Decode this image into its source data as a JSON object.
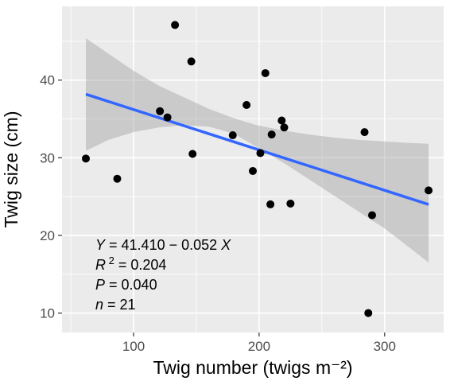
{
  "chart_data": {
    "type": "scatter",
    "xlabel": "Twig number (twigs m⁻²)",
    "ylabel": "Twig size (cm)",
    "xlim": [
      43,
      347
    ],
    "ylim": [
      7.5,
      49.5
    ],
    "x_ticks": [
      100,
      200,
      300
    ],
    "y_ticks": [
      10,
      20,
      30,
      40
    ],
    "grid": true,
    "points": [
      {
        "x": 62,
        "y": 29.9
      },
      {
        "x": 87,
        "y": 27.3
      },
      {
        "x": 121,
        "y": 36.0
      },
      {
        "x": 127,
        "y": 35.2
      },
      {
        "x": 133,
        "y": 47.1
      },
      {
        "x": 146,
        "y": 42.4
      },
      {
        "x": 147,
        "y": 30.5
      },
      {
        "x": 179,
        "y": 32.9
      },
      {
        "x": 190,
        "y": 36.8
      },
      {
        "x": 195,
        "y": 28.3
      },
      {
        "x": 201,
        "y": 30.6
      },
      {
        "x": 205,
        "y": 40.9
      },
      {
        "x": 209,
        "y": 24.0
      },
      {
        "x": 210,
        "y": 33.0
      },
      {
        "x": 218,
        "y": 34.8
      },
      {
        "x": 220,
        "y": 33.9
      },
      {
        "x": 225,
        "y": 24.1
      },
      {
        "x": 284,
        "y": 33.3
      },
      {
        "x": 287,
        "y": 10.0
      },
      {
        "x": 290,
        "y": 22.6
      },
      {
        "x": 335,
        "y": 25.8
      }
    ],
    "fit_line": {
      "intercept": 41.41,
      "slope": -0.052,
      "x_start": 62,
      "x_end": 335,
      "color": "#3366ff"
    },
    "confidence_band": {
      "color": "#999999",
      "x": [
        62,
        80,
        100,
        120,
        140,
        160,
        180,
        198,
        220,
        240,
        260,
        280,
        300,
        320,
        335
      ],
      "upper": [
        45.4,
        43.4,
        41.2,
        39.3,
        37.8,
        36.3,
        35.1,
        34.2,
        33.5,
        33.0,
        32.6,
        32.3,
        32.1,
        31.9,
        31.8
      ],
      "lower": [
        30.9,
        32.3,
        33.3,
        33.9,
        34.2,
        34.0,
        33.1,
        31.4,
        29.3,
        27.2,
        25.1,
        23.0,
        20.9,
        18.4,
        16.5
      ]
    },
    "colors": {
      "panel": "#ebebeb",
      "grid": "#ffffff",
      "point": "#000000"
    },
    "annotations": [
      {
        "pre": "",
        "italic": "Y",
        "post": " = 41.410 − 0.052 ",
        "italic2": "X"
      },
      {
        "pre": "",
        "italic": "R",
        "sup": "2",
        "post": " = 0.204",
        "italic2": ""
      },
      {
        "pre": "",
        "italic": "P",
        "post": " = 0.040",
        "italic2": ""
      },
      {
        "pre": "",
        "italic": "n",
        "post": " = 21",
        "italic2": ""
      }
    ]
  }
}
